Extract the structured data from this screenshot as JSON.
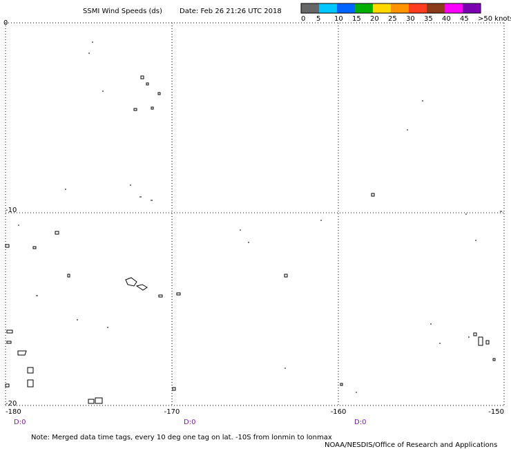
{
  "header": {
    "title": "SSMI Wind Speeds (ds)",
    "date": "Date: Feb 26 21:26 UTC 2018"
  },
  "colorbar": {
    "labels": [
      "0",
      "5",
      "10",
      "15",
      "20",
      "25",
      "30",
      "35",
      "40",
      "45",
      ">50 knots"
    ],
    "colors": [
      "#666666",
      "#00c8ff",
      "#0064ff",
      "#00b000",
      "#ffd800",
      "#ff9400",
      "#ff3c1e",
      "#8b3a1a",
      "#ff00ff",
      "#7a00b0"
    ]
  },
  "map": {
    "lat_labels": [
      "0",
      "-10",
      "-20"
    ],
    "lon_labels": [
      "-180",
      "-170",
      "-160",
      "-150"
    ],
    "time_tags": [
      "D:0",
      "D:0",
      "D:0"
    ]
  },
  "footer": {
    "note": "Note:  Merged data time tags, every 10 deg one tag on lat. -10S from lonmin to lonmax",
    "credit": "NOAA/NESDIS/Office of Research and Applications"
  }
}
